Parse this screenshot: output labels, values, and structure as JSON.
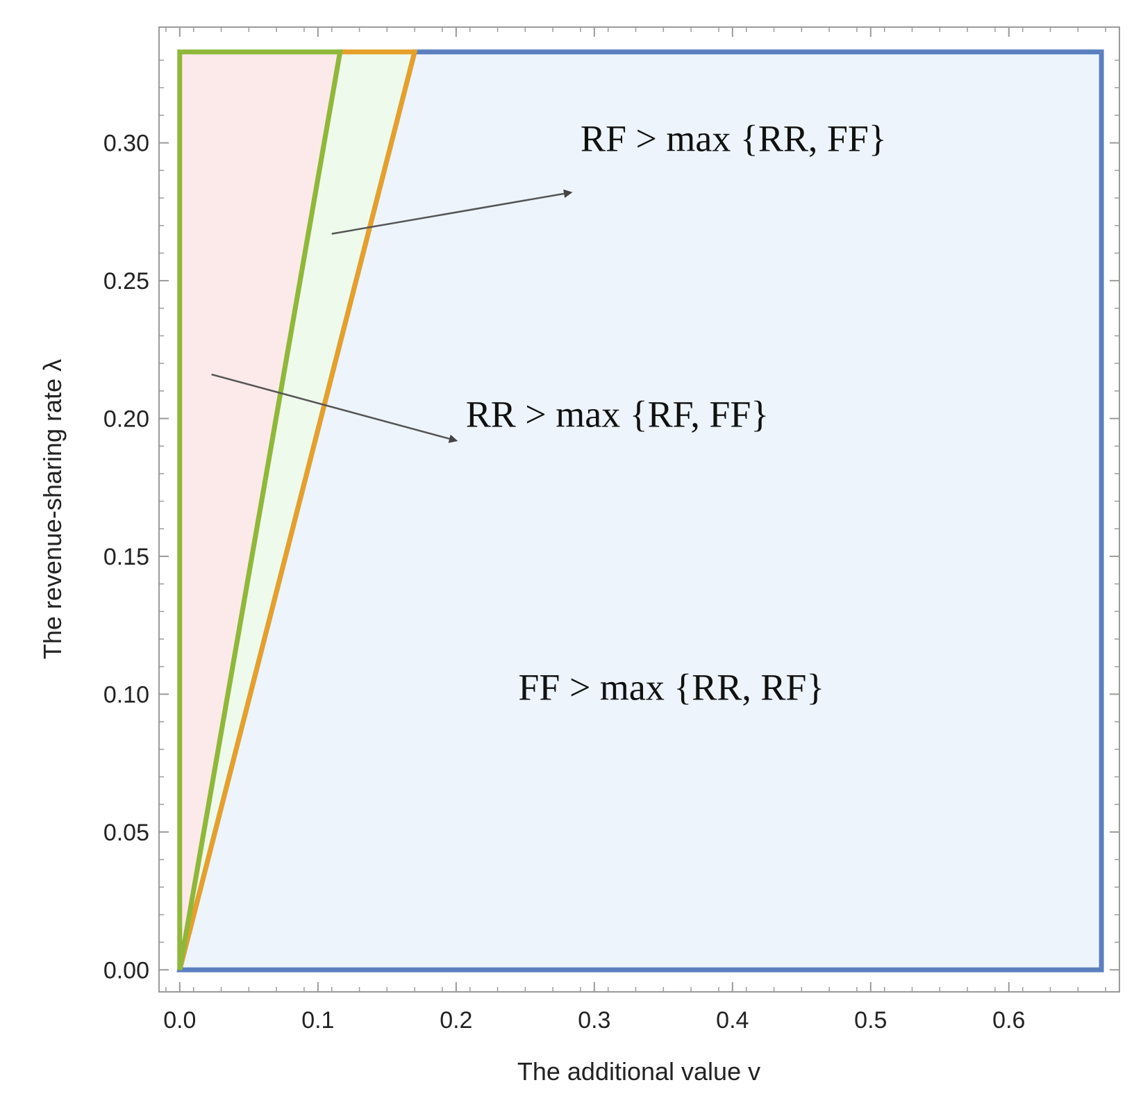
{
  "chart_data": {
    "type": "area",
    "title": "",
    "xlabel": "The additional value v",
    "ylabel": "The revenue-sharing rate λ",
    "xlim": [
      -0.015,
      0.68
    ],
    "ylim": [
      -0.008,
      0.342
    ],
    "x_ticks": [
      "0.0",
      "0.1",
      "0.2",
      "0.3",
      "0.4",
      "0.5",
      "0.6"
    ],
    "y_ticks": [
      "0.00",
      "0.05",
      "0.10",
      "0.15",
      "0.20",
      "0.25",
      "0.30"
    ],
    "grid": false,
    "regions": [
      {
        "label": "FF > max {RR, RF}",
        "fill": "#edf4fc",
        "stroke": "#5b7fbf",
        "vertices": [
          [
            0.0,
            0.0
          ],
          [
            0.667,
            0.0
          ],
          [
            0.667,
            0.333
          ],
          [
            0.17,
            0.333
          ]
        ]
      },
      {
        "label": "RF > max {RR, FF}",
        "fill": "#eefbec",
        "stroke": "#e6a02a",
        "vertices": [
          [
            0.0,
            0.0
          ],
          [
            0.17,
            0.333
          ],
          [
            0.116,
            0.333
          ]
        ]
      },
      {
        "label": "RR > max {RF, FF}",
        "fill": "#fceaea",
        "stroke": "#8fb83a",
        "vertices": [
          [
            0.0,
            0.0
          ],
          [
            0.116,
            0.333
          ],
          [
            0.0,
            0.333
          ]
        ]
      }
    ],
    "annotations": [
      {
        "text": "RF > max {RR, FF}",
        "x": 0.29,
        "y": 0.297,
        "arrow_from": [
          0.11,
          0.267
        ],
        "arrow_to": [
          0.283,
          0.282
        ]
      },
      {
        "text": "RR > max {RF, FF}",
        "x": 0.207,
        "y": 0.197,
        "arrow_from": [
          0.023,
          0.216
        ],
        "arrow_to": [
          0.2,
          0.192
        ]
      },
      {
        "text": "FF > max {RR, RF}",
        "x": 0.245,
        "y": 0.098
      }
    ]
  },
  "colors": {
    "frame": "#9a9a9a",
    "arrow": "#555555"
  }
}
